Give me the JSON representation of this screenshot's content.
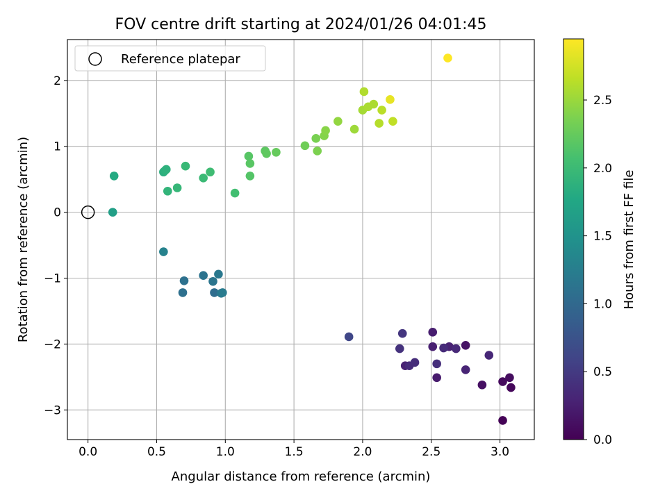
{
  "chart_data": {
    "type": "scatter",
    "title": "FOV centre drift starting at 2024/01/26 04:01:45",
    "xlabel": "Angular distance from reference (arcmin)",
    "ylabel": "Rotation from reference (arcmin)",
    "xlim": [
      -0.15,
      3.25
    ],
    "ylim": [
      -3.45,
      2.62
    ],
    "xticks": [
      "0.0",
      "0.5",
      "1.0",
      "1.5",
      "2.0",
      "2.5",
      "3.0"
    ],
    "yticks": [
      "−3",
      "−2",
      "−1",
      "0",
      "1",
      "2"
    ],
    "xtick_values": [
      0,
      0.5,
      1.0,
      1.5,
      2.0,
      2.5,
      3.0
    ],
    "ytick_values": [
      -3,
      -2,
      -1,
      0,
      1,
      2
    ],
    "grid": true,
    "legend": {
      "position": "upper left",
      "label": "Reference platepar",
      "marker": "open-circle"
    },
    "colorbar": {
      "label": "Hours from first FF file",
      "colormap": "viridis",
      "range": [
        0,
        2.95
      ],
      "ticks": [
        "0.0",
        "0.5",
        "1.0",
        "1.5",
        "2.0",
        "2.5"
      ],
      "tick_values": [
        0,
        0.5,
        1.0,
        1.5,
        2.0,
        2.5
      ]
    },
    "reference_point": {
      "x": 0,
      "y": 0
    },
    "points": [
      {
        "x": 3.02,
        "y": -3.16,
        "t": 0.02
      },
      {
        "x": 3.08,
        "y": -2.66,
        "t": 0.05
      },
      {
        "x": 3.02,
        "y": -2.57,
        "t": 0.08
      },
      {
        "x": 3.07,
        "y": -2.51,
        "t": 0.1
      },
      {
        "x": 2.87,
        "y": -2.62,
        "t": 0.13
      },
      {
        "x": 2.75,
        "y": -2.02,
        "t": 0.15
      },
      {
        "x": 2.54,
        "y": -2.51,
        "t": 0.22
      },
      {
        "x": 2.51,
        "y": -1.82,
        "t": 0.24
      },
      {
        "x": 2.51,
        "y": -2.04,
        "t": 0.26
      },
      {
        "x": 2.63,
        "y": -2.04,
        "t": 0.28
      },
      {
        "x": 2.31,
        "y": -2.33,
        "t": 0.28
      },
      {
        "x": 2.75,
        "y": -2.39,
        "t": 0.3
      },
      {
        "x": 2.92,
        "y": -2.17,
        "t": 0.32
      },
      {
        "x": 2.68,
        "y": -2.07,
        "t": 0.34
      },
      {
        "x": 2.34,
        "y": -2.33,
        "t": 0.36
      },
      {
        "x": 2.59,
        "y": -2.06,
        "t": 0.36
      },
      {
        "x": 2.38,
        "y": -2.28,
        "t": 0.38
      },
      {
        "x": 2.54,
        "y": -2.3,
        "t": 0.4
      },
      {
        "x": 2.27,
        "y": -2.07,
        "t": 0.42
      },
      {
        "x": 2.29,
        "y": -1.84,
        "t": 0.46
      },
      {
        "x": 1.9,
        "y": -1.89,
        "t": 0.62
      },
      {
        "x": 0.92,
        "y": -1.22,
        "t": 1.05
      },
      {
        "x": 0.69,
        "y": -1.22,
        "t": 1.08
      },
      {
        "x": 0.7,
        "y": -1.04,
        "t": 1.1
      },
      {
        "x": 0.84,
        "y": -0.96,
        "t": 1.12
      },
      {
        "x": 0.91,
        "y": -1.05,
        "t": 1.15
      },
      {
        "x": 0.95,
        "y": -0.94,
        "t": 1.18
      },
      {
        "x": 0.97,
        "y": -1.23,
        "t": 1.2
      },
      {
        "x": 0.98,
        "y": -1.22,
        "t": 1.22
      },
      {
        "x": 0.55,
        "y": -0.6,
        "t": 1.3
      },
      {
        "x": 0.18,
        "y": 0.0,
        "t": 1.65
      },
      {
        "x": 0.19,
        "y": 0.55,
        "t": 1.8
      },
      {
        "x": 0.55,
        "y": 0.61,
        "t": 1.85
      },
      {
        "x": 0.56,
        "y": 0.63,
        "t": 1.87
      },
      {
        "x": 0.57,
        "y": 0.65,
        "t": 1.88
      },
      {
        "x": 0.58,
        "y": 0.32,
        "t": 1.92
      },
      {
        "x": 0.65,
        "y": 0.37,
        "t": 1.95
      },
      {
        "x": 0.71,
        "y": 0.7,
        "t": 1.97
      },
      {
        "x": 0.84,
        "y": 0.52,
        "t": 1.99
      },
      {
        "x": 0.89,
        "y": 0.61,
        "t": 2.02
      },
      {
        "x": 1.07,
        "y": 0.29,
        "t": 2.05
      },
      {
        "x": 1.18,
        "y": 0.55,
        "t": 2.15
      },
      {
        "x": 1.17,
        "y": 0.85,
        "t": 2.17
      },
      {
        "x": 1.18,
        "y": 0.74,
        "t": 2.18
      },
      {
        "x": 1.29,
        "y": 0.93,
        "t": 2.2
      },
      {
        "x": 1.3,
        "y": 0.89,
        "t": 2.22
      },
      {
        "x": 1.37,
        "y": 0.91,
        "t": 2.25
      },
      {
        "x": 1.58,
        "y": 1.01,
        "t": 2.3
      },
      {
        "x": 1.66,
        "y": 1.12,
        "t": 2.35
      },
      {
        "x": 1.67,
        "y": 0.93,
        "t": 2.37
      },
      {
        "x": 1.72,
        "y": 1.16,
        "t": 2.4
      },
      {
        "x": 1.73,
        "y": 1.24,
        "t": 2.42
      },
      {
        "x": 1.82,
        "y": 1.38,
        "t": 2.47
      },
      {
        "x": 1.94,
        "y": 1.26,
        "t": 2.52
      },
      {
        "x": 2.0,
        "y": 1.55,
        "t": 2.55
      },
      {
        "x": 2.04,
        "y": 1.6,
        "t": 2.57
      },
      {
        "x": 2.08,
        "y": 1.64,
        "t": 2.58
      },
      {
        "x": 2.01,
        "y": 1.83,
        "t": 2.6
      },
      {
        "x": 2.12,
        "y": 1.35,
        "t": 2.62
      },
      {
        "x": 2.14,
        "y": 1.55,
        "t": 2.64
      },
      {
        "x": 2.22,
        "y": 1.38,
        "t": 2.67
      },
      {
        "x": 2.2,
        "y": 1.71,
        "t": 2.85
      },
      {
        "x": 2.62,
        "y": 2.34,
        "t": 2.95
      }
    ]
  }
}
